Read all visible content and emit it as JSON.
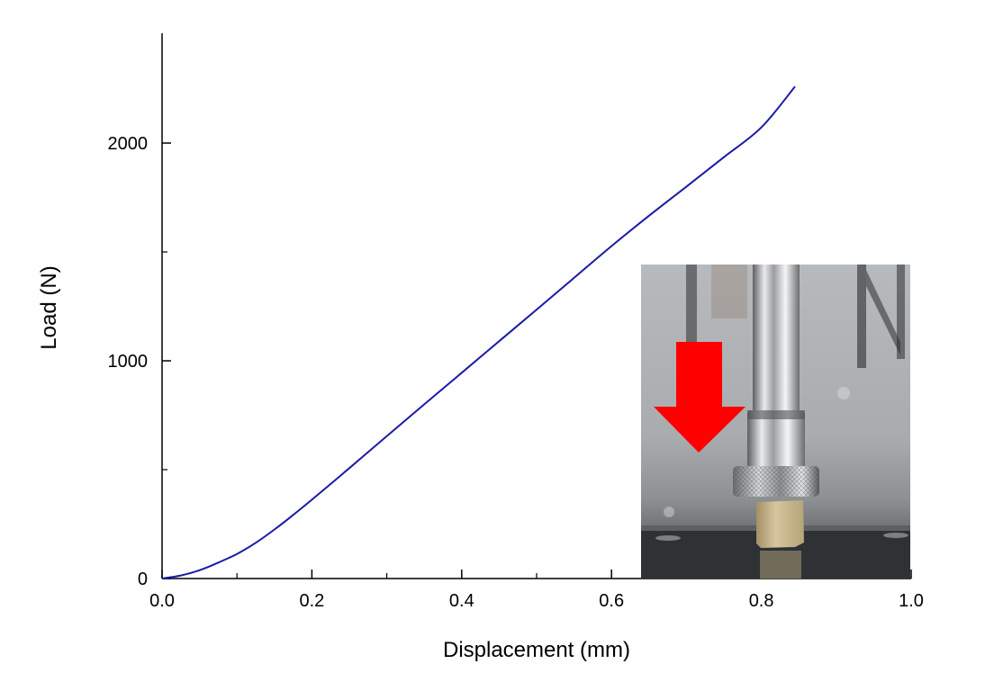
{
  "chart_data": {
    "type": "line",
    "title": "",
    "xlabel": "Displacement (mm)",
    "ylabel": "Load (N)",
    "xlim": [
      0.0,
      1.0
    ],
    "ylim": [
      0,
      2500
    ],
    "x_ticks": [
      {
        "value": 0.0,
        "label": "0.0"
      },
      {
        "value": 0.2,
        "label": "0.2"
      },
      {
        "value": 0.4,
        "label": "0.4"
      },
      {
        "value": 0.6,
        "label": "0.6"
      },
      {
        "value": 0.8,
        "label": "0.8"
      },
      {
        "value": 1.0,
        "label": "1.0"
      }
    ],
    "x_minor_ticks": [
      0.1,
      0.3,
      0.5,
      0.7,
      0.9
    ],
    "y_ticks": [
      {
        "value": 0,
        "label": "0"
      },
      {
        "value": 1000,
        "label": "1000"
      },
      {
        "value": 2000,
        "label": "2000"
      }
    ],
    "y_minor_ticks": [
      500,
      1500
    ],
    "grid": false,
    "series": [
      {
        "color": "#1a1aa8",
        "x": [
          0.0,
          0.025,
          0.05,
          0.075,
          0.1,
          0.125,
          0.15,
          0.175,
          0.2,
          0.25,
          0.3,
          0.35,
          0.4,
          0.45,
          0.5,
          0.55,
          0.6,
          0.65,
          0.7,
          0.75,
          0.8,
          0.845
        ],
        "y": [
          0,
          14,
          38,
          73,
          113,
          164,
          225,
          292,
          362,
          507,
          654,
          800,
          945,
          1090,
          1235,
          1381,
          1527,
          1666,
          1800,
          1935,
          2072,
          2260
        ]
      }
    ],
    "inset": {
      "description": "photo",
      "arrow_color": "#ff0000"
    }
  }
}
